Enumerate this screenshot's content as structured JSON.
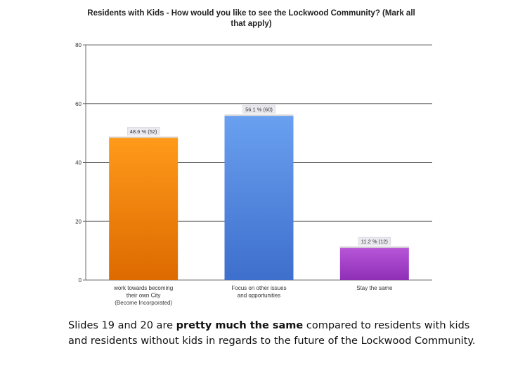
{
  "chart_data": {
    "type": "bar",
    "title": "Residents with Kids - How would you like to see the Lockwood Community? (Mark all that apply)",
    "categories": [
      "work towards becoming their own City (Become Incorporated)",
      "Focus on other issues and opportunities",
      "Stay the same"
    ],
    "category_lines": [
      [
        "work towards becoming",
        "their own City",
        "(Become Incorporated)"
      ],
      [
        "Focus on other issues",
        "and opportunities"
      ],
      [
        "Stay the same"
      ]
    ],
    "values": [
      48.6,
      56.1,
      11.2
    ],
    "counts": [
      52,
      60,
      12
    ],
    "data_labels": [
      "48.6 % (52)",
      "56.1 % (60)",
      "11.2 % (12)"
    ],
    "bar_colors": [
      [
        "#ff9a1a",
        "#dd6a00"
      ],
      [
        "#6aa0f0",
        "#3d6fcc"
      ],
      [
        "#b856d8",
        "#8e2fb6"
      ]
    ],
    "ylim": [
      0,
      80
    ],
    "yticks": [
      0,
      20,
      40,
      60,
      80
    ],
    "xlabel": "",
    "ylabel": "",
    "grid": true,
    "legend": "none"
  },
  "caption": {
    "part1": "Slides 19 and 20 are ",
    "bold": "pretty much the same",
    "part2": " compared to residents with kids and residents without kids in regards to the future of the Lockwood Community."
  }
}
